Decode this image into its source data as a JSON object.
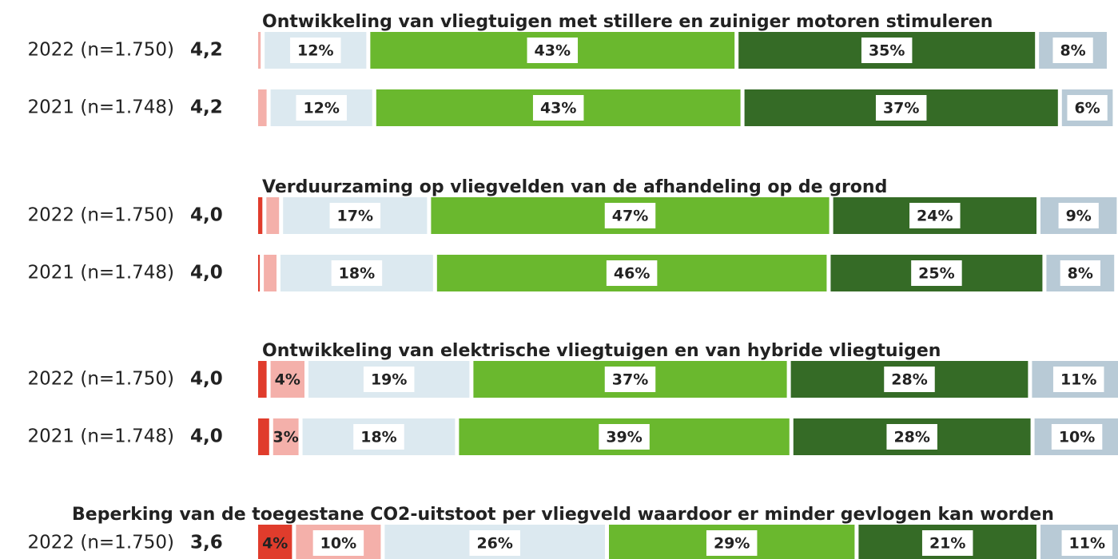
{
  "chart_data": {
    "type": "stacked_bar",
    "colors": [
      "#e03c2c",
      "#f4b0aa",
      "#dce9f0",
      "#6ab82e",
      "#356b26",
      "#b8cad6"
    ],
    "xlim": [
      0,
      100
    ],
    "groups": [
      {
        "title": "Ontwikkeling van vliegtuigen met stillere en zuiniger motoren stimuleren",
        "rows": [
          {
            "label": "2022 (n=1.750)",
            "mean": {
              "value": 4.2,
              "label": "4,2"
            },
            "values": [
              0,
              0.3,
              12,
              43,
              35,
              8
            ],
            "value_labels": [
              null,
              null,
              "12%",
              "43%",
              "35%",
              "8%"
            ]
          },
          {
            "label": "2021 (n=1.748)",
            "mean": {
              "value": 4.2,
              "label": "4,2"
            },
            "values": [
              0,
              1,
              12,
              43,
              37,
              6
            ],
            "value_labels": [
              null,
              null,
              "12%",
              "43%",
              "37%",
              "6%"
            ]
          }
        ]
      },
      {
        "title": "Verduurzaming op vliegvelden van de afhandeling op de grond",
        "rows": [
          {
            "label": "2022 (n=1.750)",
            "mean": {
              "value": 4.0,
              "label": "4,0"
            },
            "values": [
              0.5,
              1.5,
              17,
              47,
              24,
              9
            ],
            "value_labels": [
              null,
              null,
              "17%",
              "47%",
              "24%",
              "9%"
            ]
          },
          {
            "label": "2021 (n=1.748)",
            "mean": {
              "value": 4.0,
              "label": "4,0"
            },
            "values": [
              0.2,
              1.5,
              18,
              46,
              25,
              8
            ],
            "value_labels": [
              null,
              null,
              "18%",
              "46%",
              "25%",
              "8%"
            ]
          }
        ]
      },
      {
        "title": "Ontwikkeling van elektrische vliegtuigen en van hybride vliegtuigen",
        "rows": [
          {
            "label": "2022 (n=1.750)",
            "mean": {
              "value": 4.0,
              "label": "4,0"
            },
            "values": [
              1,
              4,
              19,
              37,
              28,
              11
            ],
            "value_labels": [
              null,
              "4%",
              "19%",
              "37%",
              "28%",
              "11%"
            ]
          },
          {
            "label": "2021 (n=1.748)",
            "mean": {
              "value": 4.0,
              "label": "4,0"
            },
            "values": [
              1.3,
              3,
              18,
              39,
              28,
              10
            ],
            "value_labels": [
              null,
              "3%",
              "18%",
              "39%",
              "28%",
              "10%"
            ]
          }
        ]
      },
      {
        "title": "Beperking van de toegestane CO2-uitstoot per vliegveld waardoor er minder gevlogen kan worden",
        "rows": [
          {
            "label": "2022 (n=1.750)",
            "mean": {
              "value": 3.6,
              "label": "3,6"
            },
            "values": [
              4,
              10,
              26,
              29,
              21,
              11
            ],
            "value_labels": [
              "4%",
              "10%",
              "26%",
              "29%",
              "21%",
              "11%"
            ]
          }
        ]
      }
    ]
  }
}
